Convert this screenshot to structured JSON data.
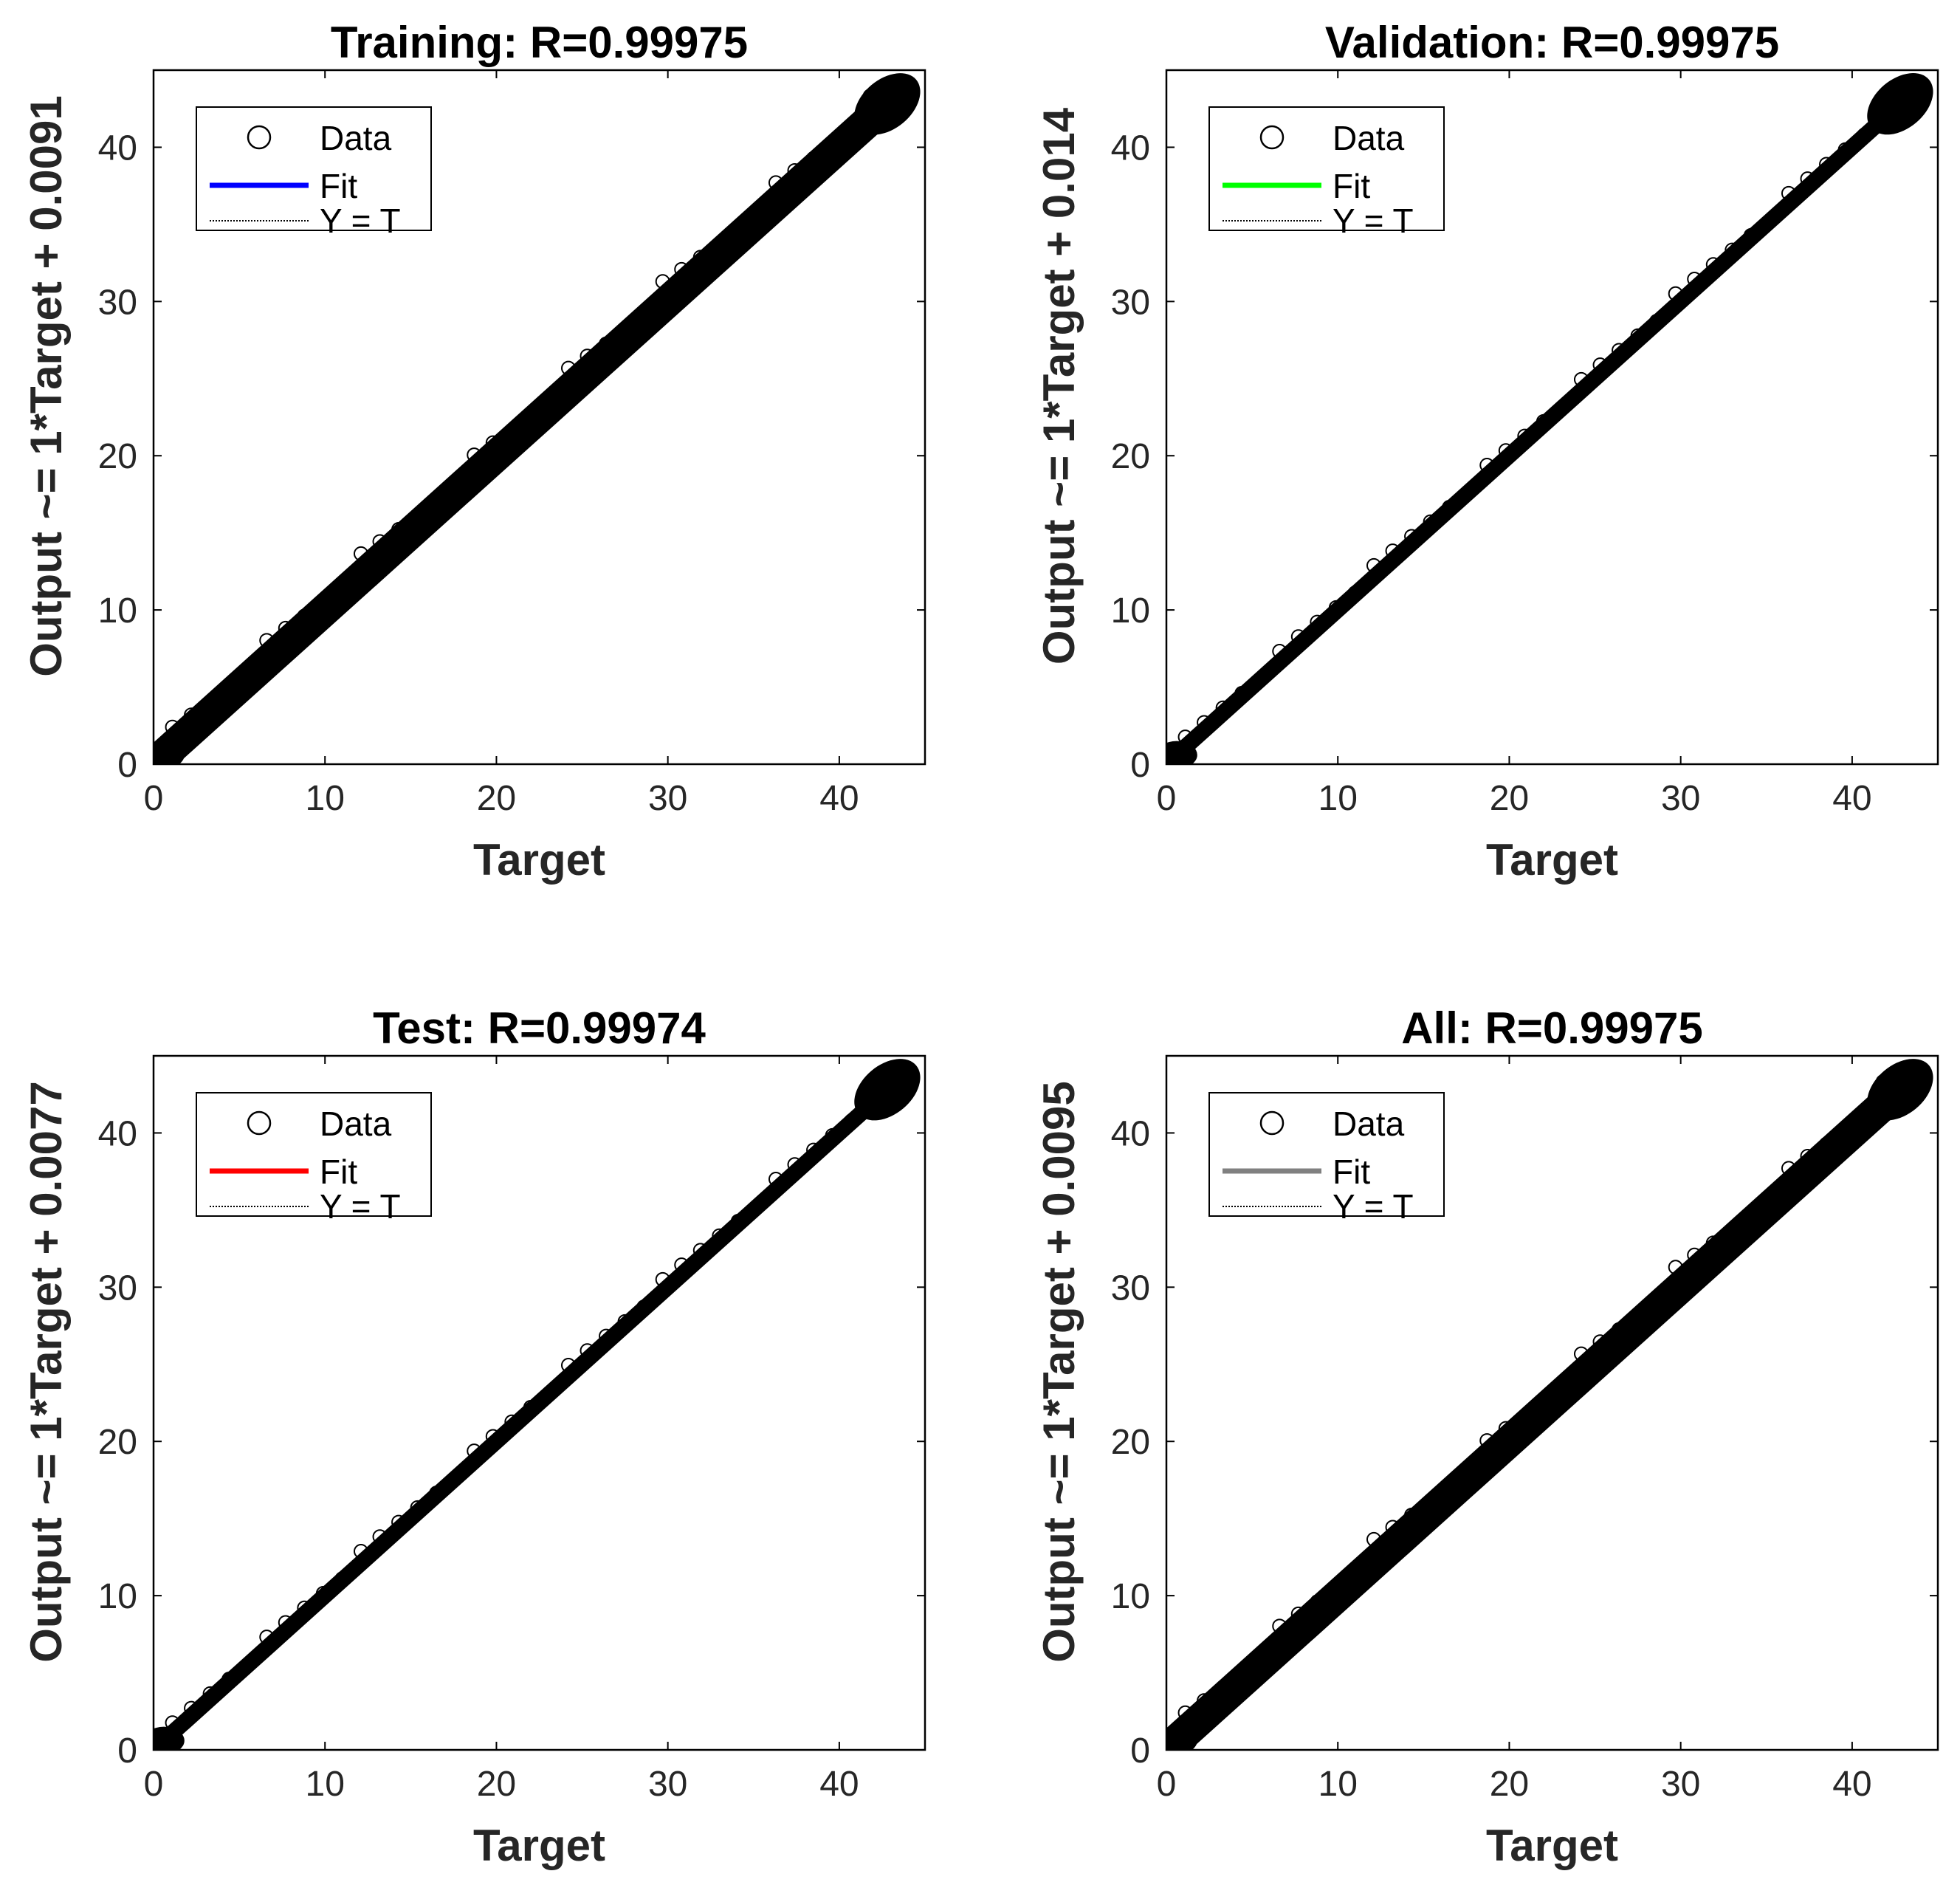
{
  "chart_data": [
    {
      "type": "scatter",
      "title": "Training: R=0.99975",
      "xlabel": "Target",
      "ylabel": "Output ~= 1*Target + 0.0091",
      "xlim": [
        0,
        45
      ],
      "ylim": [
        0,
        45
      ],
      "xticks": [
        "0",
        "10",
        "20",
        "30",
        "40"
      ],
      "yticks": [
        "0",
        "10",
        "20",
        "30",
        "40"
      ],
      "fit": {
        "slope": 1,
        "intercept": 0.0091,
        "color": "#0000ff"
      },
      "data_x_range": [
        0,
        44
      ],
      "scatter_band": 1.4,
      "legend": [
        "Data",
        "Fit",
        "Y = T"
      ]
    },
    {
      "type": "scatter",
      "title": "Validation: R=0.99975",
      "xlabel": "Target",
      "ylabel": "Output ~= 1*Target + 0.014",
      "xlim": [
        0,
        45
      ],
      "ylim": [
        0,
        45
      ],
      "xticks": [
        "0",
        "10",
        "20",
        "30",
        "40"
      ],
      "yticks": [
        "0",
        "10",
        "20",
        "30",
        "40"
      ],
      "fit": {
        "slope": 1,
        "intercept": 0.014,
        "color": "#00ff00"
      },
      "data_x_range": [
        0,
        44
      ],
      "scatter_band": 0.7,
      "legend": [
        "Data",
        "Fit",
        "Y = T"
      ]
    },
    {
      "type": "scatter",
      "title": "Test: R=0.99974",
      "xlabel": "Target",
      "ylabel": "Output ~= 1*Target + 0.0077",
      "xlim": [
        0,
        45
      ],
      "ylim": [
        0,
        45
      ],
      "xticks": [
        "0",
        "10",
        "20",
        "30",
        "40"
      ],
      "yticks": [
        "0",
        "10",
        "20",
        "30",
        "40"
      ],
      "fit": {
        "slope": 1,
        "intercept": 0.0077,
        "color": "#ff0000"
      },
      "data_x_range": [
        0,
        44
      ],
      "scatter_band": 0.7,
      "legend": [
        "Data",
        "Fit",
        "Y = T"
      ]
    },
    {
      "type": "scatter",
      "title": "All: R=0.99975",
      "xlabel": "Target",
      "ylabel": "Output ~= 1*Target + 0.0095",
      "xlim": [
        0,
        45
      ],
      "ylim": [
        0,
        45
      ],
      "xticks": [
        "0",
        "10",
        "20",
        "30",
        "40"
      ],
      "yticks": [
        "0",
        "10",
        "20",
        "30",
        "40"
      ],
      "fit": {
        "slope": 1,
        "intercept": 0.0095,
        "color": "#808080"
      },
      "data_x_range": [
        0,
        44
      ],
      "scatter_band": 1.4,
      "legend": [
        "Data",
        "Fit",
        "Y = T"
      ]
    }
  ]
}
